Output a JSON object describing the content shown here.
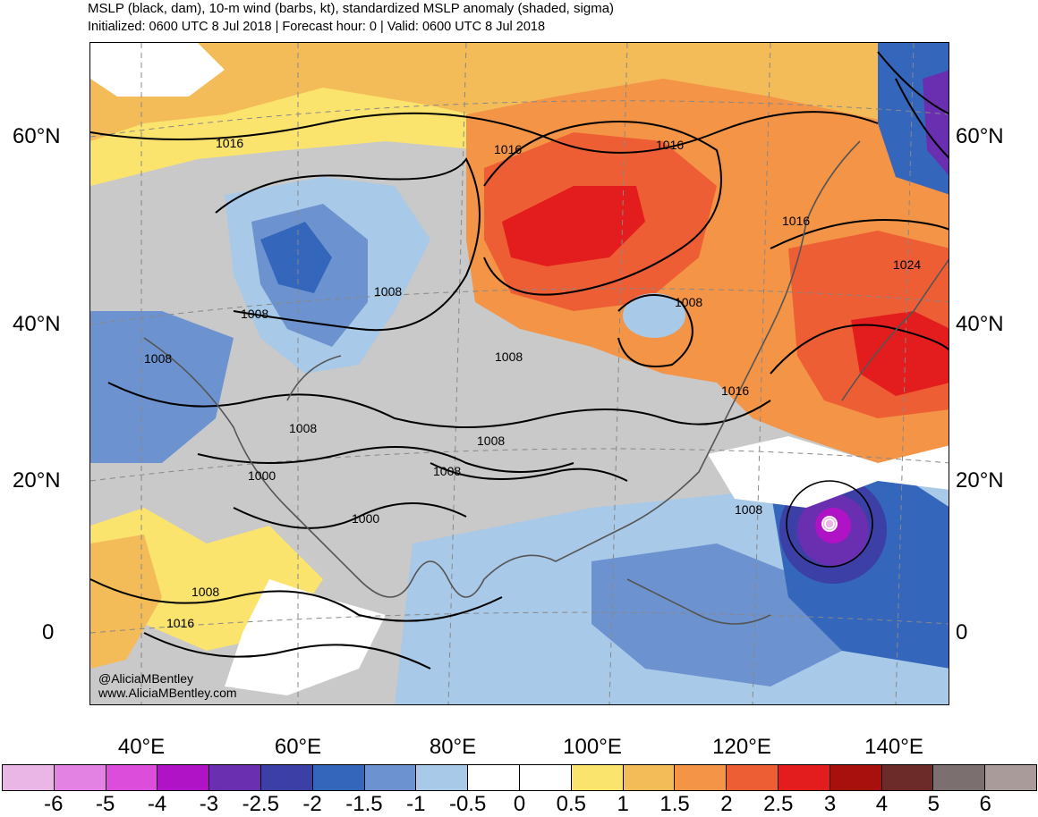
{
  "header": {
    "title": "MSLP (black, dam), 10-m wind (barbs, kt), standardized MSLP anomaly (shaded, sigma)",
    "subtitle": "Initialized: 0600 UTC 8 Jul 2018 | Forecast hour: 0 | Valid: 0600 UTC 8 Jul 2018"
  },
  "map": {
    "lat_labels": [
      "60°N",
      "40°N",
      "20°N",
      "0"
    ],
    "lon_labels": [
      "40°E",
      "60°E",
      "80°E",
      "100°E",
      "120°E",
      "140°E"
    ],
    "contour_labels": [
      "1016",
      "1016",
      "1016",
      "1016",
      "1024",
      "1008",
      "1008",
      "1008",
      "1008",
      "1016",
      "1008",
      "1008",
      "1008",
      "1008",
      "1000",
      "1000",
      "1008",
      "1008",
      "1016"
    ],
    "credit": [
      "@AliciaMBentley",
      "www.AliciaMBentley.com"
    ]
  },
  "colorbar": {
    "colors": [
      "#e9b6e6",
      "#e482e4",
      "#dc4ddc",
      "#b012c6",
      "#6a2fb0",
      "#3b3fa6",
      "#3466bb",
      "#6c93cf",
      "#a8c9e7",
      "#ffffff",
      "#ffffff",
      "#fbe46e",
      "#f4bc58",
      "#f39447",
      "#ee5e35",
      "#e31d1d",
      "#a8100d",
      "#6c2b29",
      "#7b706f",
      "#a89b9a"
    ],
    "labels": [
      "-6",
      "-5",
      "-4",
      "-3",
      "-2.5",
      "-2",
      "-1.5",
      "-1",
      "-0.5",
      "0",
      "0.5",
      "1",
      "1.5",
      "2",
      "2.5",
      "3",
      "4",
      "5",
      "6"
    ]
  }
}
